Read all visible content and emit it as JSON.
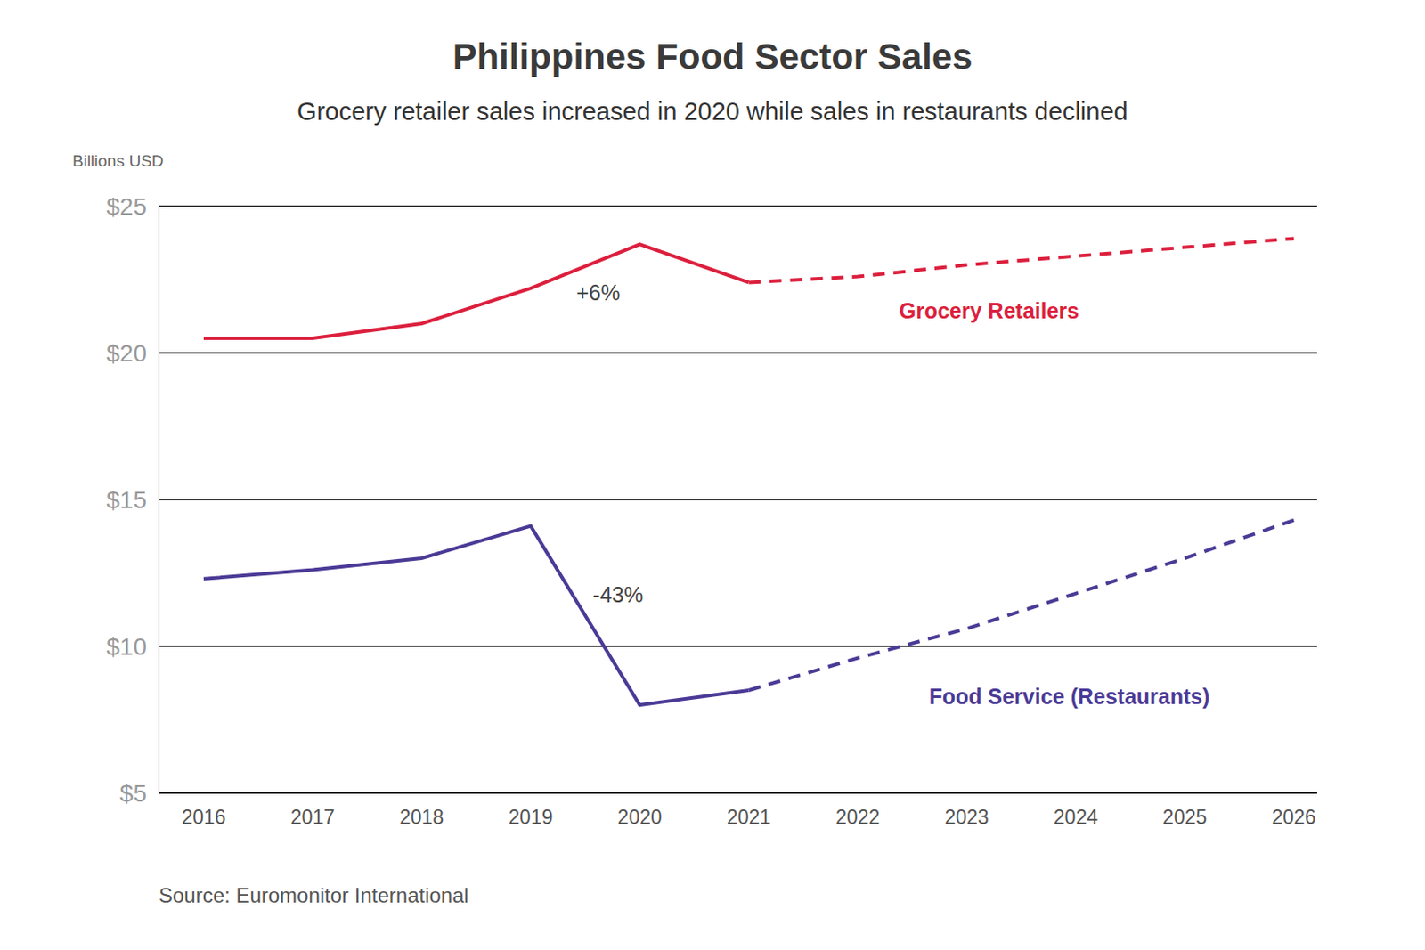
{
  "chart_data": {
    "type": "line",
    "title": "Philippines Food Sector Sales",
    "subtitle": "Grocery retailer sales increased in 2020 while sales in restaurants declined",
    "y_label": "Billions USD",
    "source": "Source: Euromonitor International",
    "categories": [
      "2016",
      "2017",
      "2018",
      "2019",
      "2020",
      "2021",
      "2022",
      "2023",
      "2024",
      "2025",
      "2026"
    ],
    "ylim": [
      5,
      25
    ],
    "yticks": [
      {
        "value": 5,
        "label": "$5"
      },
      {
        "value": 10,
        "label": "$10"
      },
      {
        "value": 15,
        "label": "$15"
      },
      {
        "value": 20,
        "label": "$20"
      },
      {
        "value": 25,
        "label": "$25"
      }
    ],
    "grid": true,
    "annotations": [
      {
        "text": "+6%"
      },
      {
        "text": "-43%"
      }
    ],
    "series": [
      {
        "name": "Grocery Retailers",
        "color": "#dc1f3d",
        "line_style": "solid",
        "values": [
          20.5,
          20.5,
          21.0,
          22.2,
          23.7,
          22.4,
          null,
          null,
          null,
          null,
          null
        ],
        "forecast": {
          "line_style": "dashed",
          "values": [
            null,
            null,
            null,
            null,
            null,
            22.4,
            22.6,
            23.0,
            23.3,
            23.6,
            23.9
          ]
        }
      },
      {
        "name": "Food Service (Restaurants)",
        "color": "#4b3a96",
        "line_style": "solid",
        "values": [
          12.3,
          12.6,
          13.0,
          14.1,
          8.0,
          8.5,
          null,
          null,
          null,
          null,
          null
        ],
        "forecast": {
          "line_style": "dashed",
          "values": [
            null,
            null,
            null,
            null,
            null,
            8.5,
            9.6,
            10.6,
            11.8,
            13.0,
            14.3
          ]
        }
      }
    ]
  }
}
